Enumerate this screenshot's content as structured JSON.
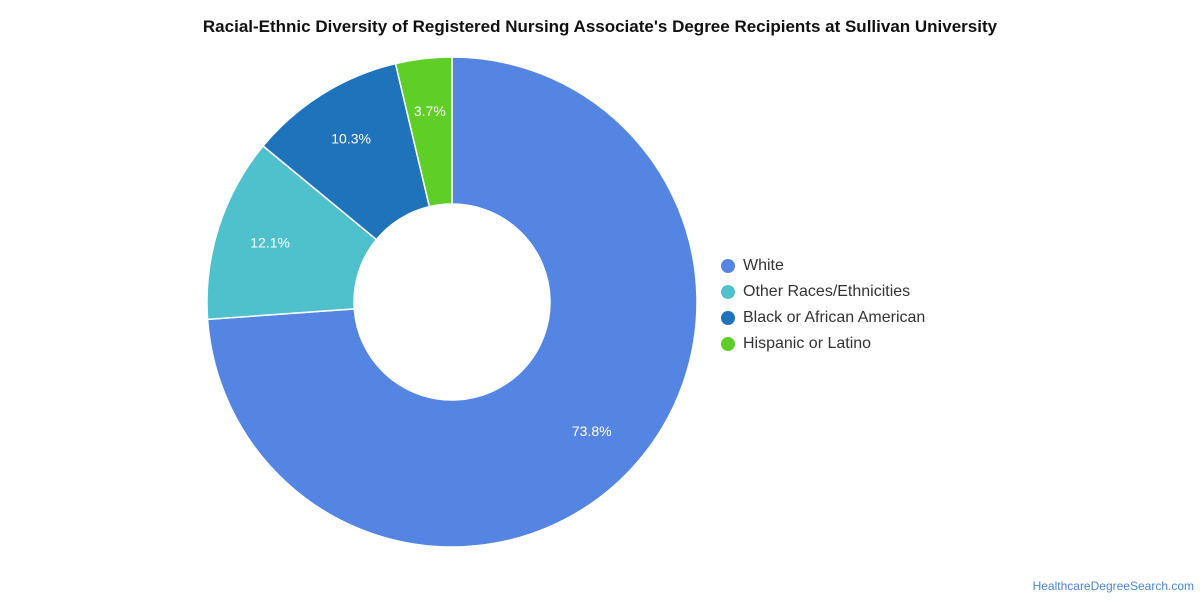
{
  "chart_data": {
    "type": "pie",
    "variant": "donut",
    "title": "Racial-Ethnic Diversity of Registered Nursing Associate's Degree Recipients at Sullivan University",
    "categories": [
      "White",
      "Other Races/Ethnicities",
      "Black or African American",
      "Hispanic or Latino"
    ],
    "values": [
      73.8,
      12.1,
      10.3,
      3.7
    ],
    "value_labels": [
      "73.8%",
      "12.1%",
      "10.3%",
      "3.7%"
    ],
    "colors": [
      "#5485e2",
      "#4fc1cc",
      "#1e73bb",
      "#5fcf28"
    ],
    "legend_position": "right"
  },
  "source": "HealthcareDegreeSearch.com"
}
